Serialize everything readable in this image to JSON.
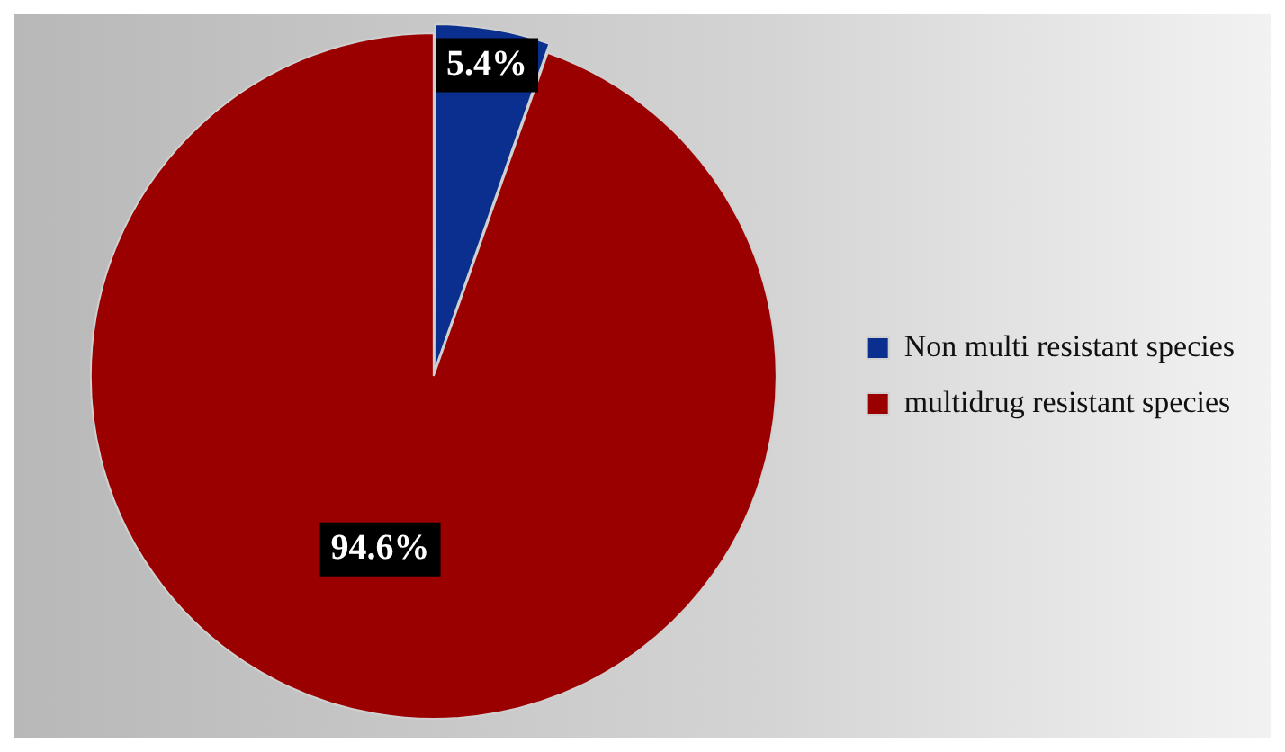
{
  "chart_data": {
    "type": "pie",
    "categories": [
      "Non multi resistant species",
      "multidrug resistant species"
    ],
    "values": [
      5.4,
      94.6
    ],
    "colors": [
      "#0a2f8f",
      "#9b0000"
    ],
    "value_labels": [
      "5.4%",
      "94.6%"
    ],
    "legend": "right"
  }
}
